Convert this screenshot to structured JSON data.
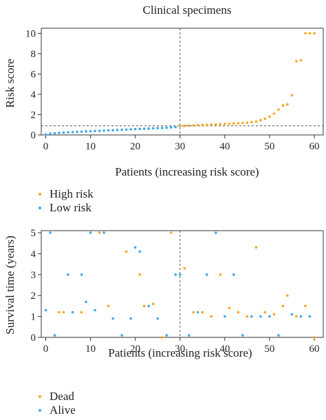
{
  "chart_data": [
    {
      "type": "scatter",
      "title": "Clinical specimens",
      "xlabel": "Patients (increasing risk score)",
      "ylabel": "Risk score",
      "xlim": [
        -1,
        62
      ],
      "ylim": [
        0,
        10.5
      ],
      "xticks": [
        0,
        10,
        20,
        30,
        40,
        50,
        60
      ],
      "yticks": [
        0,
        2,
        4,
        6,
        8,
        10
      ],
      "cutoff_x": 30,
      "cutoff_y": 0.9,
      "grid": false,
      "legend_position": "below",
      "colors": {
        "High risk": "#f5a623",
        "Low risk": "#3ea8e6"
      },
      "series": [
        {
          "name": "Low risk",
          "x": [
            0,
            1,
            2,
            3,
            4,
            5,
            6,
            7,
            8,
            9,
            10,
            11,
            12,
            13,
            14,
            15,
            16,
            17,
            18,
            19,
            20,
            21,
            22,
            23,
            24,
            25,
            26,
            27,
            28,
            29
          ],
          "y": [
            0.05,
            0.12,
            0.17,
            0.2,
            0.23,
            0.26,
            0.28,
            0.31,
            0.33,
            0.35,
            0.37,
            0.39,
            0.41,
            0.43,
            0.45,
            0.47,
            0.49,
            0.51,
            0.53,
            0.55,
            0.57,
            0.59,
            0.61,
            0.63,
            0.65,
            0.67,
            0.69,
            0.71,
            0.74,
            0.78
          ]
        },
        {
          "name": "High risk",
          "x": [
            30,
            31,
            32,
            33,
            34,
            35,
            36,
            37,
            38,
            39,
            40,
            41,
            42,
            43,
            44,
            45,
            46,
            47,
            48,
            49,
            50,
            51,
            52,
            53,
            54,
            55,
            56,
            57,
            58,
            59,
            60
          ],
          "y": [
            0.88,
            0.9,
            0.92,
            0.94,
            0.96,
            0.98,
            1.0,
            1.02,
            1.04,
            1.06,
            1.08,
            1.1,
            1.12,
            1.15,
            1.18,
            1.22,
            1.27,
            1.33,
            1.45,
            1.6,
            1.8,
            2.1,
            2.5,
            2.9,
            3.0,
            3.9,
            7.25,
            7.35,
            10.0,
            10.0,
            10.0
          ]
        }
      ]
    },
    {
      "type": "scatter",
      "xlabel": "Patients (increasing risk score)",
      "ylabel": "Survival time (years)",
      "xlim": [
        -1,
        62
      ],
      "ylim": [
        0,
        5.1
      ],
      "xticks": [
        0,
        10,
        20,
        30,
        40,
        50,
        60
      ],
      "yticks": [
        0,
        1,
        2,
        3,
        4,
        5
      ],
      "cutoff_x": 30,
      "grid": false,
      "legend_position": "below",
      "colors": {
        "Dead": "#f5a623",
        "Alive": "#3ea8e6"
      },
      "series": [
        {
          "name": "Dead",
          "x": [
            3,
            4,
            8,
            12,
            14,
            18,
            21,
            22,
            24,
            26,
            28,
            31,
            33,
            35,
            37,
            39,
            41,
            43,
            45,
            47,
            49,
            51,
            53,
            54,
            56,
            58,
            60
          ],
          "y": [
            1.2,
            1.2,
            1.2,
            5.0,
            1.5,
            4.1,
            3.0,
            1.5,
            1.6,
            0.0,
            5.0,
            3.3,
            1.2,
            1.2,
            1.0,
            3.0,
            1.4,
            1.2,
            1.0,
            4.3,
            1.2,
            1.1,
            1.5,
            2.0,
            1.0,
            1.5,
            0.0
          ]
        },
        {
          "name": "Alive",
          "x": [
            0,
            1,
            2,
            5,
            6,
            8,
            9,
            10,
            11,
            13,
            15,
            17,
            19,
            20,
            21,
            23,
            25,
            27,
            29,
            30,
            32,
            34,
            36,
            38,
            40,
            42,
            44,
            46,
            48,
            50,
            52,
            55,
            57,
            59
          ],
          "y": [
            1.3,
            5.0,
            0.1,
            3.0,
            1.2,
            3.0,
            1.7,
            5.0,
            1.3,
            5.0,
            0.9,
            0.1,
            0.9,
            4.3,
            4.1,
            1.5,
            0.9,
            0.1,
            3.0,
            3.0,
            0.1,
            1.2,
            3.0,
            5.0,
            1.0,
            3.0,
            0.1,
            1.0,
            1.0,
            1.0,
            0.1,
            1.1,
            1.0,
            1.0
          ]
        }
      ]
    }
  ]
}
